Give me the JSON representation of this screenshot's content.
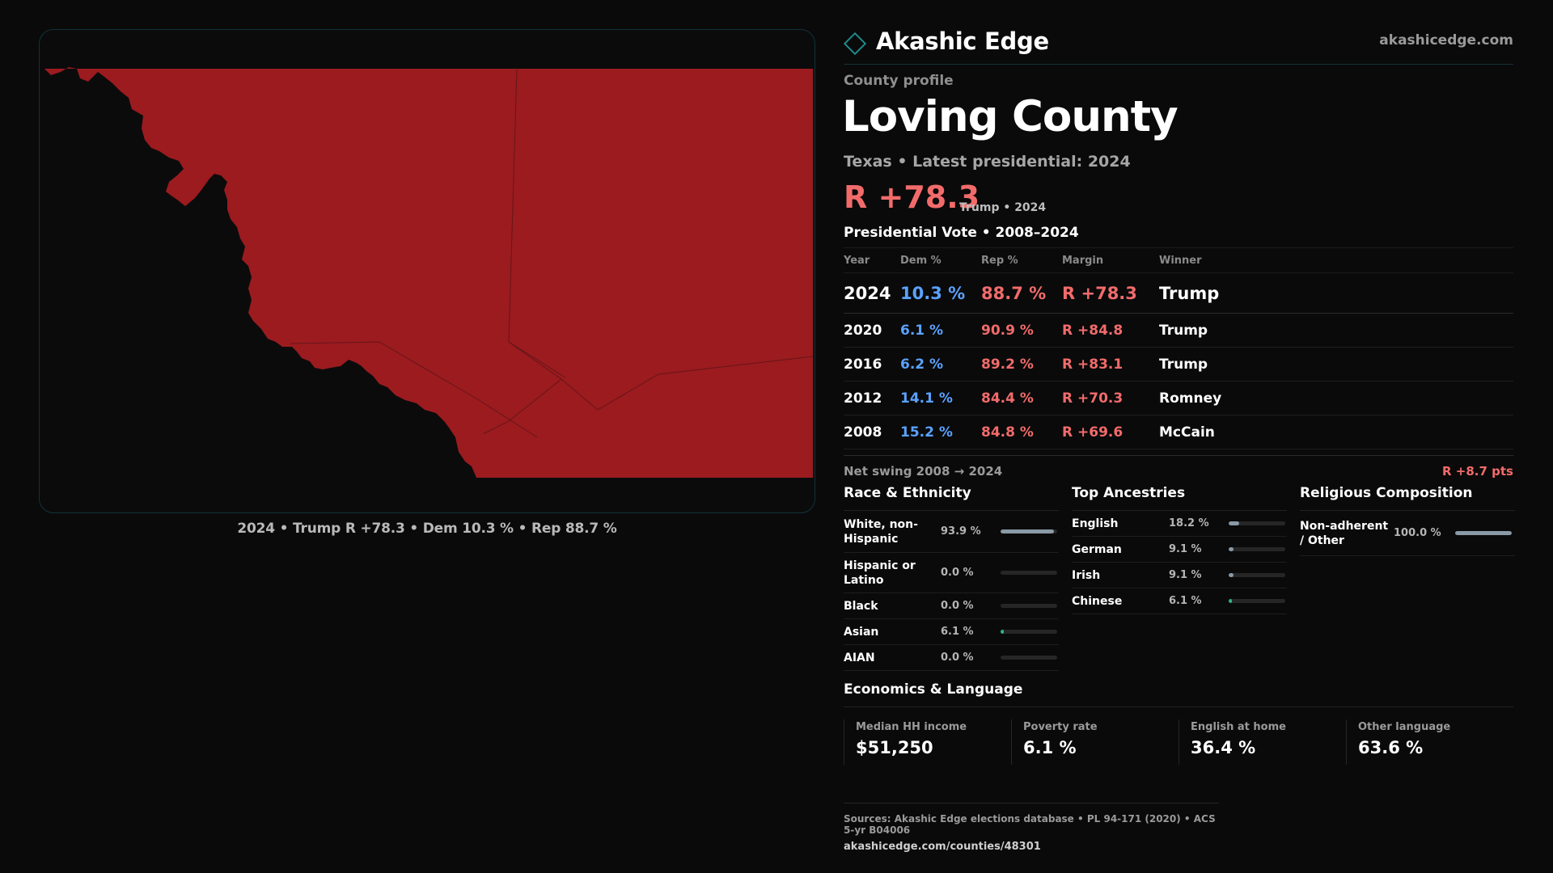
{
  "header": {
    "brand": "Akashic Edge",
    "site": "akashicedge.com"
  },
  "profile": {
    "eyebrow": "County profile",
    "title": "Loving County",
    "subtitle": "Texas • Latest presidential: 2024",
    "margin": "R +78.3",
    "margin_note": "Trump • 2024"
  },
  "map": {
    "caption": "2024 • Trump R +78.3 • Dem 10.3 % • Rep 88.7 %",
    "fill_color": "#9b1b1f",
    "outline_color": "#12333a"
  },
  "vote": {
    "title": "Presidential Vote • 2008–2024",
    "headers": [
      "Year",
      "Dem %",
      "Rep %",
      "Margin",
      "Winner"
    ],
    "rows": [
      {
        "year": "2024",
        "dem": "10.3 %",
        "rep": "88.7 %",
        "margin": "R +78.3",
        "winner": "Trump"
      },
      {
        "year": "2020",
        "dem": "6.1 %",
        "rep": "90.9 %",
        "margin": "R +84.8",
        "winner": "Trump"
      },
      {
        "year": "2016",
        "dem": "6.2 %",
        "rep": "89.2 %",
        "margin": "R +83.1",
        "winner": "Trump"
      },
      {
        "year": "2012",
        "dem": "14.1 %",
        "rep": "84.4 %",
        "margin": "R +70.3",
        "winner": "Romney"
      },
      {
        "year": "2008",
        "dem": "15.2 %",
        "rep": "84.8 %",
        "margin": "R +69.6",
        "winner": "McCain"
      }
    ],
    "swing_label": "Net swing 2008 → 2024",
    "swing_value": "R +8.7 pts"
  },
  "race": {
    "title": "Race & Ethnicity",
    "items": [
      {
        "label": "White, non-Hispanic",
        "value": "93.9 %",
        "fraction": 0.939
      },
      {
        "label": "Hispanic or Latino",
        "value": "0.0 %",
        "fraction": 0.0
      },
      {
        "label": "Black",
        "value": "0.0 %",
        "fraction": 0.0
      },
      {
        "label": "Asian",
        "value": "6.1 %",
        "fraction": 0.061
      },
      {
        "label": "AIAN",
        "value": "0.0 %",
        "fraction": 0.0
      }
    ]
  },
  "ancestry": {
    "title": "Top Ancestries",
    "items": [
      {
        "label": "English",
        "value": "18.2 %",
        "fraction": 0.182
      },
      {
        "label": "German",
        "value": "9.1 %",
        "fraction": 0.091
      },
      {
        "label": "Irish",
        "value": "9.1 %",
        "fraction": 0.091
      },
      {
        "label": "Chinese",
        "value": "6.1 %",
        "fraction": 0.061
      }
    ]
  },
  "religion": {
    "title": "Religious Composition",
    "items": [
      {
        "label": "Non-adherent / Other",
        "value": "100.0 %",
        "fraction": 1.0
      }
    ]
  },
  "economics": {
    "title": "Economics & Language",
    "items": [
      {
        "label": "Median HH income",
        "value": "$51,250"
      },
      {
        "label": "Poverty rate",
        "value": "6.1 %"
      },
      {
        "label": "English at home",
        "value": "36.4 %"
      },
      {
        "label": "Other language",
        "value": "63.6 %"
      }
    ]
  },
  "footer": {
    "sources": "Sources: Akashic Edge elections database • PL 94-171 (2020) • ACS 5-yr B04006",
    "url": "akashicedge.com/counties/48301"
  }
}
